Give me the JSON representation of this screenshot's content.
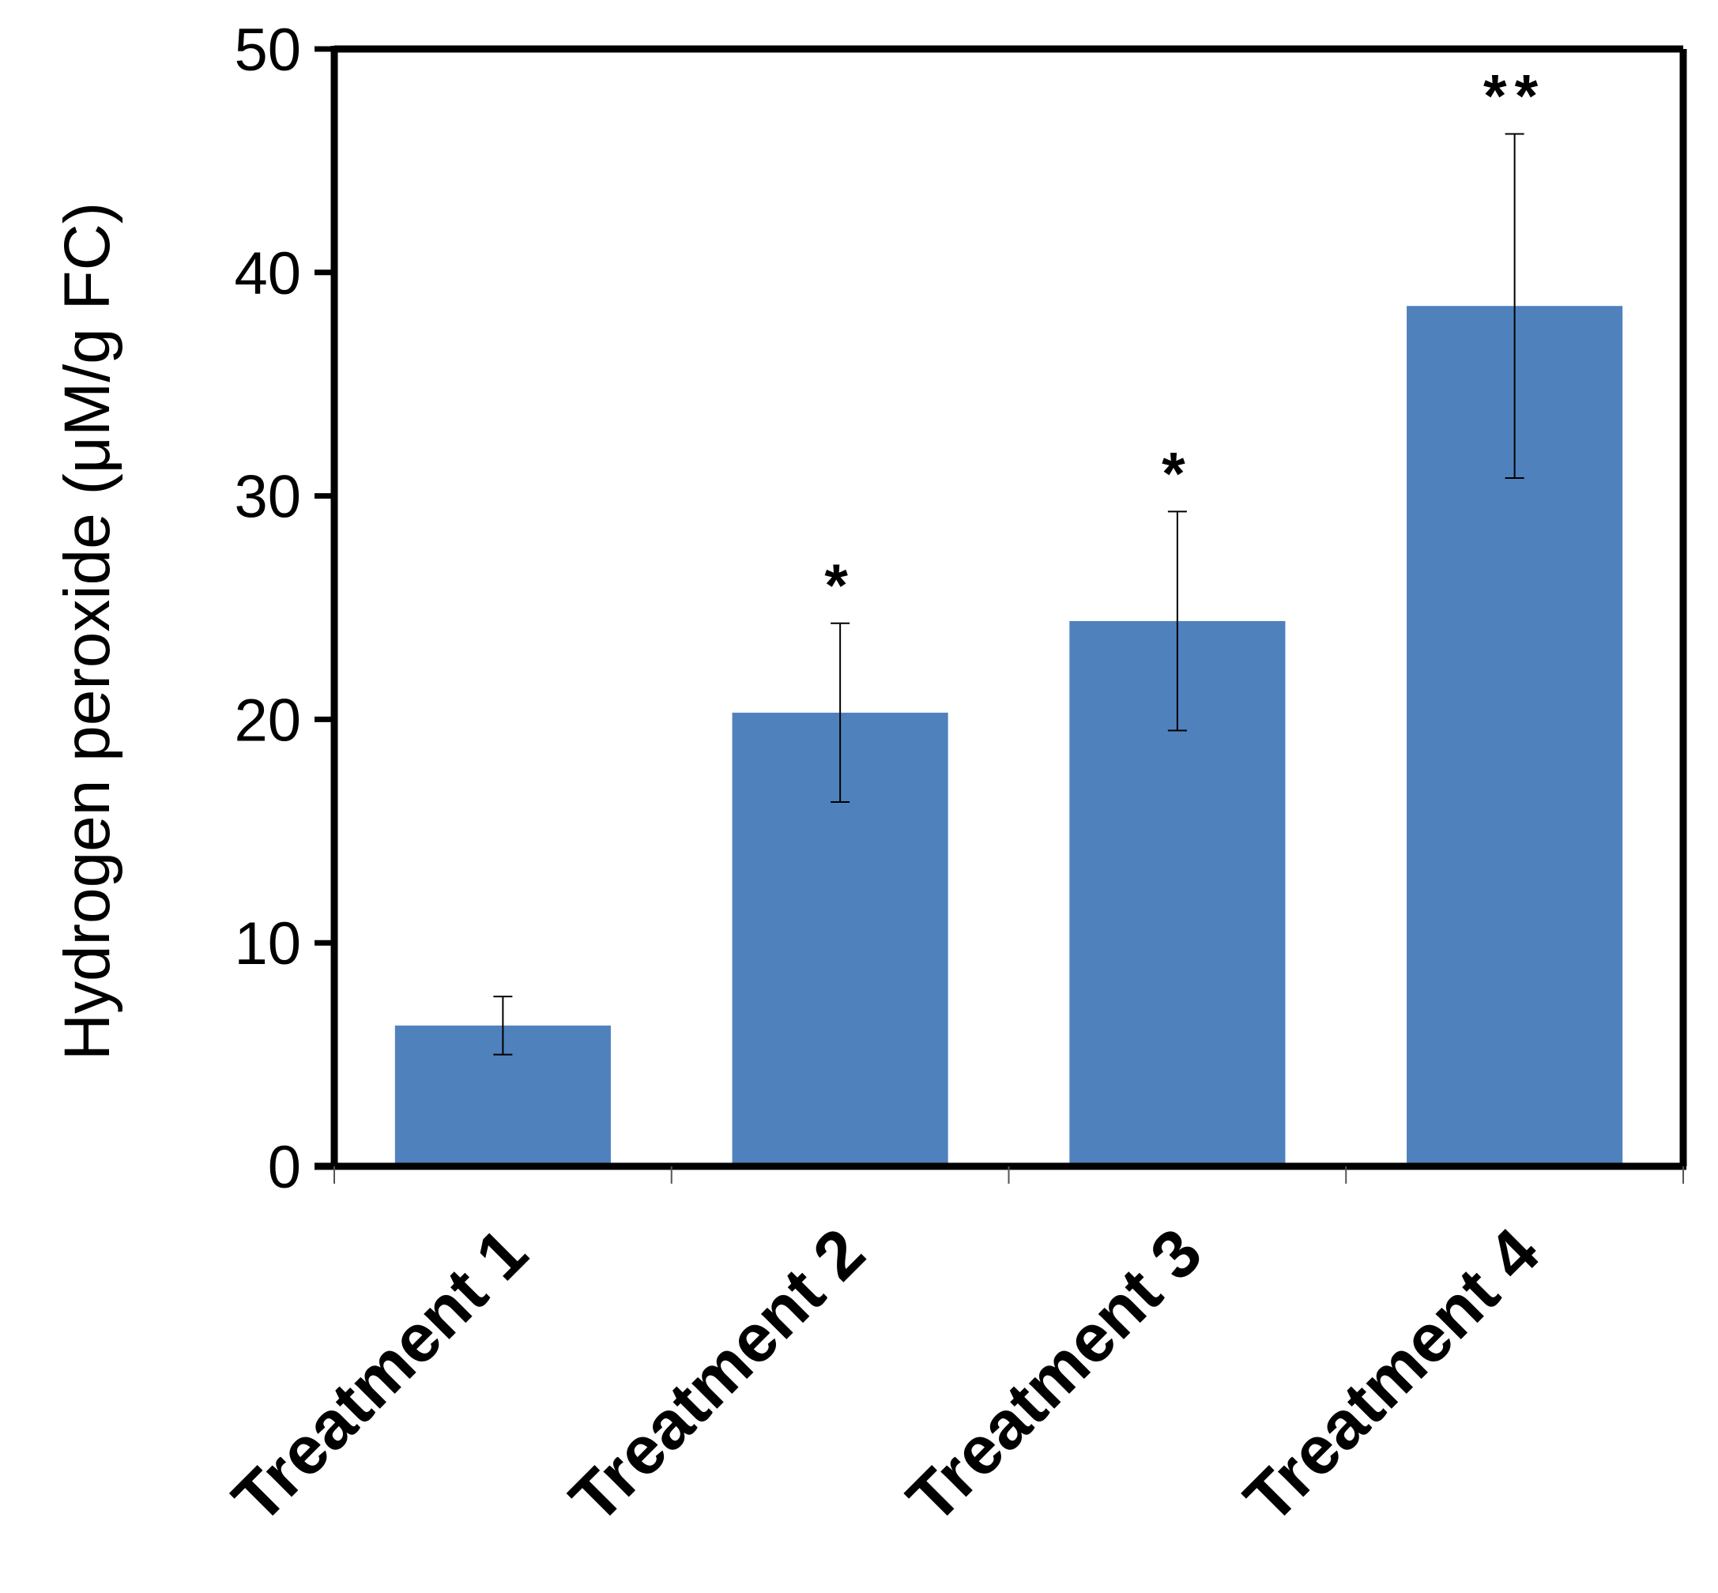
{
  "chart_data": {
    "type": "bar",
    "title": "",
    "xlabel": "",
    "ylabel": "Hydrogen peroxide (μM/g FC)",
    "ylim": [
      0,
      50
    ],
    "yticks": [
      0,
      10,
      20,
      30,
      40,
      50
    ],
    "grid": false,
    "categories": [
      "Treatment 1",
      "Treatment 2",
      "Treatment 3",
      "Treatment 4"
    ],
    "values": [
      6.3,
      20.3,
      24.4,
      38.5
    ],
    "error": [
      1.3,
      4.0,
      4.9,
      7.7
    ],
    "annotations": [
      "",
      "*",
      "*",
      "**"
    ],
    "bar_color": "#4F81BD"
  }
}
